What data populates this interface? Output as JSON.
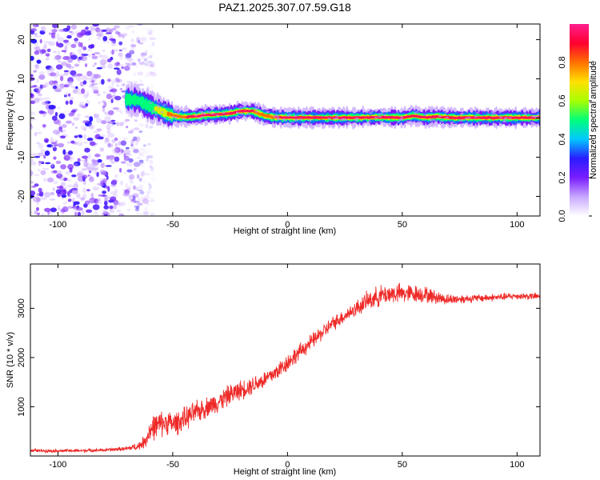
{
  "title": "PAZ1.2025.307.07.59.G18",
  "chart_data": [
    {
      "type": "heatmap",
      "name": "spectrogram",
      "xlabel": "Height of straight line (km)",
      "ylabel": "Frequency (Hz)",
      "xlim": [
        -112,
        110
      ],
      "ylim": [
        -25,
        24
      ],
      "xticks": [
        -100,
        -50,
        0,
        50,
        100
      ],
      "yticks": [
        -20,
        -10,
        0,
        10,
        20
      ],
      "noise_region_km": [
        -112,
        -60
      ],
      "ridge": {
        "x": [
          -70,
          -65,
          -62,
          -58,
          -55,
          -52,
          -48,
          -44,
          -40,
          -35,
          -30,
          -25,
          -20,
          -15,
          -10,
          -5,
          0,
          10,
          20,
          30,
          40,
          50,
          55,
          60,
          65,
          70,
          80,
          90,
          100,
          110
        ],
        "freq": [
          4.8,
          4.5,
          3.5,
          2.5,
          1.8,
          1.0,
          0.4,
          0.3,
          0.4,
          0.8,
          0.9,
          1.2,
          1.8,
          1.8,
          0.6,
          0.2,
          0.1,
          0.1,
          0.1,
          0.1,
          0.2,
          0.1,
          0.6,
          0.1,
          0.4,
          0.1,
          0.1,
          0.1,
          0.1,
          0.1
        ],
        "amplitude": [
          0.45,
          0.5,
          0.55,
          0.6,
          0.7,
          0.75,
          0.85,
          0.9,
          0.9,
          0.95,
          1.0,
          0.95,
          0.95,
          0.9,
          0.85,
          0.9,
          0.95,
          1.0,
          1.0,
          1.0,
          0.95,
          1.0,
          0.9,
          0.95,
          0.9,
          1.0,
          1.0,
          1.0,
          1.0,
          1.0
        ]
      },
      "colorbar": {
        "label": "Normalized spectral amplitude",
        "ticks": [
          0.0,
          0.2,
          0.4,
          0.6,
          0.8
        ],
        "tick_labels": [
          "0.0",
          "0.2",
          "0.4",
          "0.6",
          "0.8"
        ],
        "range": [
          0,
          1
        ],
        "colors": [
          "#ffffff",
          "#c8a8ff",
          "#7a1dff",
          "#2a1bff",
          "#00c8ff",
          "#00ff7a",
          "#a8ff00",
          "#ffe000",
          "#ff7000",
          "#ff0030",
          "#ff1f8f"
        ]
      }
    },
    {
      "type": "line",
      "name": "snr",
      "xlabel": "Height of straight line (km)",
      "ylabel": "SNR (10 * v/v)",
      "xlim": [
        -112,
        110
      ],
      "ylim": [
        0,
        3900
      ],
      "xticks": [
        -100,
        -50,
        0,
        50,
        100
      ],
      "yticks": [
        1000,
        2000,
        3000
      ],
      "color": "#ee2a28",
      "series": [
        {
          "name": "SNR",
          "x": [
            -112,
            -100,
            -90,
            -80,
            -70,
            -65,
            -62,
            -60,
            -58,
            -55,
            -52,
            -50,
            -45,
            -40,
            -35,
            -30,
            -25,
            -20,
            -15,
            -10,
            -5,
            0,
            5,
            10,
            15,
            20,
            25,
            30,
            35,
            40,
            45,
            50,
            55,
            60,
            65,
            70,
            80,
            90,
            100,
            110
          ],
          "mean": [
            110,
            105,
            110,
            120,
            150,
            200,
            300,
            520,
            600,
            650,
            700,
            640,
            750,
            880,
            1000,
            1100,
            1250,
            1350,
            1450,
            1550,
            1700,
            1900,
            2100,
            2300,
            2500,
            2700,
            2850,
            3000,
            3150,
            3250,
            3300,
            3300,
            3300,
            3280,
            3220,
            3180,
            3200,
            3220,
            3250,
            3240
          ],
          "spread": [
            60,
            60,
            60,
            60,
            80,
            150,
            250,
            450,
            480,
            480,
            450,
            450,
            420,
            420,
            380,
            380,
            380,
            360,
            340,
            340,
            330,
            330,
            300,
            290,
            280,
            270,
            260,
            300,
            350,
            380,
            380,
            360,
            330,
            300,
            250,
            200,
            150,
            140,
            130,
            130
          ]
        }
      ]
    }
  ]
}
